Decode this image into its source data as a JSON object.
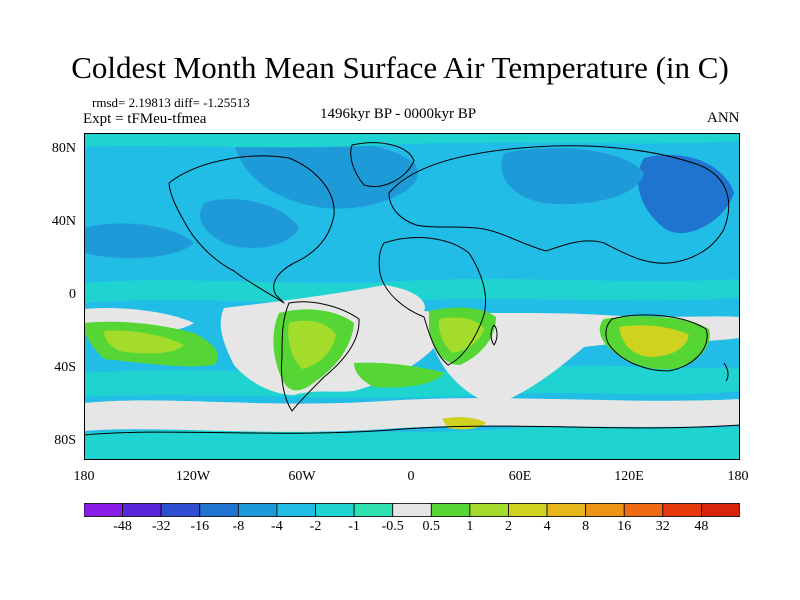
{
  "title": "Coldest Month Mean Surface Air Temperature (in C)",
  "stats_line": "rmsd= 2.19813 diff= -1.25513",
  "experiment_line": "Expt = tFMeu-tfmea",
  "period_label": "1496kyr BP - 0000kyr BP",
  "season_label": "ANN",
  "lat_ticks": [
    "80N",
    "40N",
    "0",
    "40S",
    "80S"
  ],
  "lon_ticks": [
    "180",
    "120W",
    "60W",
    "0",
    "60E",
    "120E",
    "180"
  ],
  "colorbar": {
    "labels": [
      "-48",
      "-32",
      "-16",
      "-8",
      "-4",
      "-2",
      "-1",
      "-0.5",
      "0.5",
      "1",
      "2",
      "4",
      "8",
      "16",
      "32",
      "48"
    ],
    "colors": [
      "#8a1be6",
      "#5a26d9",
      "#2e4fd1",
      "#1f74cf",
      "#1f9ad8",
      "#22bde6",
      "#1fd3d1",
      "#2fe0b0",
      "#e6e6e6",
      "#55d634",
      "#a3dc2a",
      "#cfd31f",
      "#e6b61a",
      "#eb9416",
      "#ef6a12",
      "#e63a0c",
      "#d9230a"
    ]
  },
  "map_colors": {
    "ocean_base": "#22bde6",
    "cool": "#1f9ad8",
    "cold": "#1f74cf",
    "mild": "#1fd3d1",
    "neutral": "#e6e6e6",
    "warm_light": "#55d634",
    "warm": "#a3dc2a",
    "warmer": "#cfd31f"
  }
}
